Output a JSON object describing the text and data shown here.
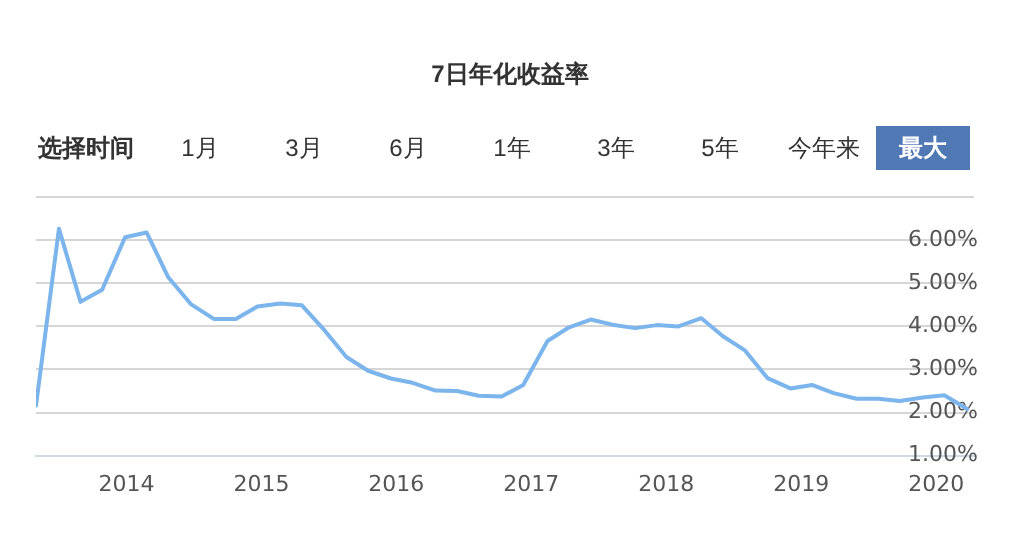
{
  "chart_data": {
    "type": "line",
    "title": "7日年化收益率",
    "annotations": [
      "选择时间",
      "1月",
      "3月",
      "6月",
      "1年",
      "3年",
      "5年",
      "今年来",
      "最大"
    ],
    "x": [
      2013.33,
      2013.5,
      2013.66,
      2013.82,
      2013.99,
      2014.15,
      2014.31,
      2014.48,
      2014.65,
      2014.81,
      2014.97,
      2015.14,
      2015.3,
      2015.47,
      2015.63,
      2015.79,
      2015.96,
      2016.12,
      2016.29,
      2016.45,
      2016.61,
      2016.78,
      2016.94,
      2017.12,
      2017.28,
      2017.44,
      2017.6,
      2017.77,
      2017.93,
      2018.09,
      2018.26,
      2018.42,
      2018.58,
      2018.75,
      2018.92,
      2019.08,
      2019.24,
      2019.41,
      2019.57,
      2019.73,
      2019.9,
      2020.06,
      2020.23
    ],
    "series": [
      {
        "color": "#7cb5ec",
        "values": [
          2.16,
          6.27,
          4.57,
          4.85,
          6.07,
          6.18,
          5.14,
          4.51,
          4.17,
          4.17,
          4.46,
          4.53,
          4.49,
          3.9,
          3.29,
          2.97,
          2.79,
          2.69,
          2.51,
          2.5,
          2.39,
          2.37,
          2.64,
          3.66,
          3.98,
          4.16,
          4.04,
          3.96,
          4.03,
          4.0,
          4.19,
          3.77,
          3.45,
          2.8,
          2.56,
          2.64,
          2.45,
          2.32,
          2.32,
          2.27,
          2.35,
          2.4,
          2.08
        ]
      }
    ],
    "xlim": [
      2013.33,
      2020.28
    ],
    "xticks": [
      2014,
      2015,
      2016,
      2017,
      2018,
      2019,
      2020
    ],
    "ylim": [
      1,
      7
    ],
    "yticks": [
      {
        "value": 1,
        "label": "1.00%"
      },
      {
        "value": 2,
        "label": "2.00%"
      },
      {
        "value": 3,
        "label": "3.00%"
      },
      {
        "value": 4,
        "label": "4.00%"
      },
      {
        "value": 5,
        "label": "5.00%"
      },
      {
        "value": 6,
        "label": "6.00%"
      },
      {
        "value": 7,
        "label": null
      }
    ],
    "grid": "y",
    "legend": false,
    "marker": "none",
    "line_style": "solid"
  }
}
